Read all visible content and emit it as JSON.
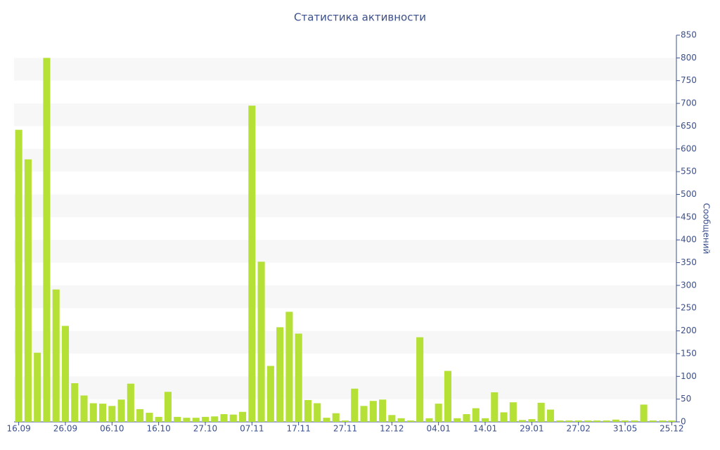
{
  "chart_data": {
    "type": "bar",
    "title": "Статистика активности",
    "y_axis_label": "Сообщений",
    "categories": [
      "16.09",
      null,
      null,
      null,
      null,
      "26.09",
      null,
      null,
      null,
      null,
      "06.10",
      null,
      null,
      null,
      null,
      "16.10",
      null,
      null,
      null,
      null,
      "27.10",
      null,
      null,
      null,
      null,
      "07.11",
      null,
      null,
      null,
      null,
      "17.11",
      null,
      null,
      null,
      null,
      "27.11",
      null,
      null,
      null,
      null,
      "12.12",
      null,
      null,
      null,
      null,
      "04.01",
      null,
      null,
      null,
      null,
      "14.01",
      null,
      null,
      null,
      null,
      "29.01",
      null,
      null,
      null,
      null,
      "27.02",
      null,
      null,
      null,
      null,
      "31.05",
      null,
      null,
      null,
      null,
      "25.12"
    ],
    "values": [
      642,
      577,
      152,
      800,
      291,
      211,
      85,
      58,
      41,
      40,
      35,
      49,
      84,
      28,
      20,
      11,
      66,
      11,
      9,
      9,
      11,
      12,
      17,
      16,
      22,
      695,
      352,
      123,
      208,
      242,
      194,
      48,
      41,
      9,
      19,
      3,
      73,
      35,
      46,
      49,
      15,
      8,
      3,
      186,
      8,
      40,
      112,
      8,
      17,
      30,
      8,
      65,
      21,
      43,
      4,
      6,
      42,
      27,
      3,
      3,
      3,
      3,
      3,
      3,
      5,
      3,
      3,
      38,
      3,
      3,
      3
    ],
    "color": "#b5e035",
    "ylim": [
      0,
      850
    ],
    "yticks": [
      0,
      50,
      100,
      150,
      200,
      250,
      300,
      350,
      400,
      450,
      500,
      550,
      600,
      650,
      700,
      750,
      800,
      850
    ],
    "y_axis_side": "right",
    "grid": "bands"
  }
}
